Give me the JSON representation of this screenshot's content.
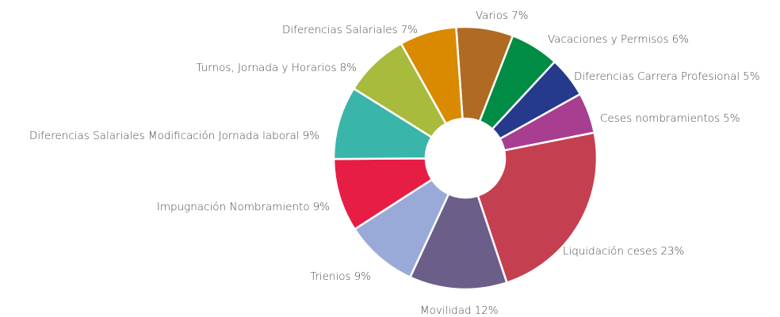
{
  "chart_data": {
    "type": "donut",
    "categories": [
      "Varios",
      "Vacaciones y Permisos",
      "Diferencias Carrera Profesional",
      "Ceses nombramientos",
      "Liquidación ceses",
      "Movilidad",
      "Trienios",
      "Impugnación Nombramiento",
      "Diferencias Salariales Modificación Jornada laboral",
      "Turnos, Jornada y Horarios",
      "Diferencias Salariales"
    ],
    "values": [
      7,
      6,
      5,
      5,
      23,
      12,
      9,
      9,
      9,
      8,
      7
    ],
    "value_labels": [
      "7%",
      "6%",
      "5%",
      "5%",
      "23%",
      "12%",
      "9%",
      "9%",
      "9%",
      "8%",
      "7%"
    ],
    "colors": [
      "#b06a22",
      "#008c44",
      "#253a8c",
      "#a83e8f",
      "#c44050",
      "#6b5f8a",
      "#9aaad8",
      "#e61e45",
      "#3ab5aa",
      "#a8bb3c",
      "#d98a00"
    ]
  }
}
